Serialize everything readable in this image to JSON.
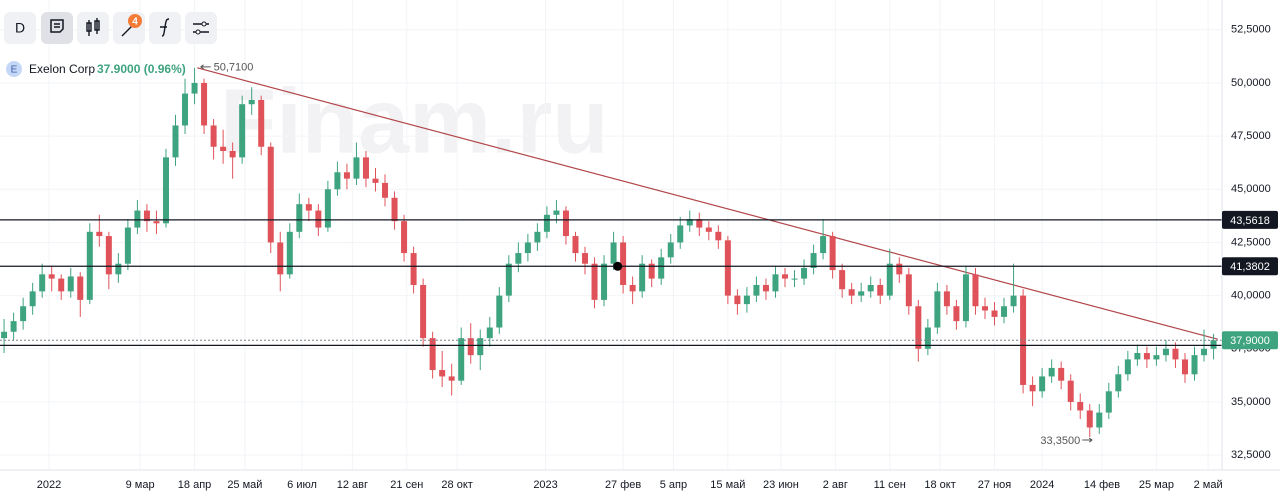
{
  "toolbar": {
    "interval": "D",
    "badge": "4"
  },
  "chart_data": {
    "type": "candlestick",
    "watermark": "Finam.ru",
    "ticker_icon": "E",
    "name": "Exelon Corp",
    "quote": "37.9000 (0.96%)",
    "up_color": "#3ea37f",
    "down_color": "#e0525a",
    "grid": true,
    "xlim": [
      "2021-11-26",
      "2024-05-10"
    ],
    "ylim": [
      31.8,
      53.9
    ],
    "yticks": [
      {
        "value": 52.5,
        "label": "52,5000"
      },
      {
        "value": 50,
        "label": "50,0000"
      },
      {
        "value": 47.5,
        "label": "47,5000"
      },
      {
        "value": 45,
        "label": "45,0000"
      },
      {
        "value": 42.5,
        "label": "42,5000"
      },
      {
        "value": 40,
        "label": "40,0000"
      },
      {
        "value": 37.5,
        "label": "37,5000"
      },
      {
        "value": 35,
        "label": "35,0000"
      },
      {
        "value": 32.5,
        "label": "32,5000"
      }
    ],
    "xticks": [
      {
        "value": "2022-01-01",
        "label": "2022"
      },
      {
        "value": "2022-03-09",
        "label": "9 мар"
      },
      {
        "value": "2022-04-18",
        "label": "18 апр"
      },
      {
        "value": "2022-05-25",
        "label": "25 май"
      },
      {
        "value": "2022-07-06",
        "label": "6 июл"
      },
      {
        "value": "2022-08-12",
        "label": "12 авг"
      },
      {
        "value": "2022-09-21",
        "label": "21 сен"
      },
      {
        "value": "2022-10-28",
        "label": "28 окт"
      },
      {
        "value": "2023-01-01",
        "label": "2023"
      },
      {
        "value": "2023-02-27",
        "label": "27 фев"
      },
      {
        "value": "2023-04-05",
        "label": "5 апр"
      },
      {
        "value": "2023-05-15",
        "label": "15 май"
      },
      {
        "value": "2023-06-23",
        "label": "23 июн"
      },
      {
        "value": "2023-08-02",
        "label": "2 авг"
      },
      {
        "value": "2023-09-11",
        "label": "11 сен"
      },
      {
        "value": "2023-10-18",
        "label": "18 окт"
      },
      {
        "value": "2023-11-27",
        "label": "27 ноя"
      },
      {
        "value": "2024-01-01",
        "label": "2024"
      },
      {
        "value": "2024-02-14",
        "label": "14 фев"
      },
      {
        "value": "2024-03-25",
        "label": "25 мар"
      },
      {
        "value": "2024-05-02",
        "label": "2 май"
      }
    ],
    "x": [
      "2021-11-29",
      "2021-12-06",
      "2021-12-13",
      "2021-12-20",
      "2021-12-27",
      "2022-01-03",
      "2022-01-10",
      "2022-01-17",
      "2022-01-24",
      "2022-01-31",
      "2022-02-07",
      "2022-02-14",
      "2022-02-21",
      "2022-02-28",
      "2022-03-07",
      "2022-03-14",
      "2022-03-21",
      "2022-03-28",
      "2022-04-04",
      "2022-04-11",
      "2022-04-18",
      "2022-04-25",
      "2022-05-02",
      "2022-05-09",
      "2022-05-16",
      "2022-05-23",
      "2022-05-30",
      "2022-06-06",
      "2022-06-13",
      "2022-06-20",
      "2022-06-27",
      "2022-07-04",
      "2022-07-11",
      "2022-07-18",
      "2022-07-25",
      "2022-08-01",
      "2022-08-08",
      "2022-08-15",
      "2022-08-22",
      "2022-08-29",
      "2022-09-05",
      "2022-09-12",
      "2022-09-19",
      "2022-09-26",
      "2022-10-03",
      "2022-10-10",
      "2022-10-17",
      "2022-10-24",
      "2022-10-31",
      "2022-11-07",
      "2022-11-14",
      "2022-11-21",
      "2022-11-28",
      "2022-12-05",
      "2022-12-12",
      "2022-12-19",
      "2022-12-26",
      "2023-01-02",
      "2023-01-09",
      "2023-01-16",
      "2023-01-23",
      "2023-01-30",
      "2023-02-06",
      "2023-02-13",
      "2023-02-20",
      "2023-02-27",
      "2023-03-06",
      "2023-03-13",
      "2023-03-20",
      "2023-03-27",
      "2023-04-03",
      "2023-04-10",
      "2023-04-17",
      "2023-04-24",
      "2023-05-01",
      "2023-05-08",
      "2023-05-15",
      "2023-05-22",
      "2023-05-29",
      "2023-06-05",
      "2023-06-12",
      "2023-06-19",
      "2023-06-26",
      "2023-07-03",
      "2023-07-10",
      "2023-07-17",
      "2023-07-24",
      "2023-07-31",
      "2023-08-07",
      "2023-08-14",
      "2023-08-21",
      "2023-08-28",
      "2023-09-04",
      "2023-09-11",
      "2023-09-18",
      "2023-09-25",
      "2023-10-02",
      "2023-10-09",
      "2023-10-16",
      "2023-10-23",
      "2023-10-30",
      "2023-11-06",
      "2023-11-13",
      "2023-11-20",
      "2023-11-27",
      "2023-12-04",
      "2023-12-11",
      "2023-12-18",
      "2023-12-25",
      "2024-01-01",
      "2024-01-08",
      "2024-01-15",
      "2024-01-22",
      "2024-01-29",
      "2024-02-05",
      "2024-02-12",
      "2024-02-19",
      "2024-02-26",
      "2024-03-04",
      "2024-03-11",
      "2024-03-18",
      "2024-03-25",
      "2024-04-01",
      "2024-04-08",
      "2024-04-15",
      "2024-04-22",
      "2024-04-29",
      "2024-05-06"
    ],
    "ohlc": [
      [
        38.0,
        38.9,
        37.3,
        38.3
      ],
      [
        38.3,
        39.2,
        37.9,
        38.8
      ],
      [
        38.8,
        39.9,
        38.4,
        39.5
      ],
      [
        39.5,
        40.6,
        39.1,
        40.2
      ],
      [
        40.2,
        41.5,
        39.9,
        41.0
      ],
      [
        41.0,
        41.4,
        40.2,
        40.8
      ],
      [
        40.8,
        41.0,
        39.8,
        40.2
      ],
      [
        40.2,
        41.3,
        39.9,
        40.9
      ],
      [
        40.9,
        41.1,
        39.0,
        39.8
      ],
      [
        39.8,
        43.4,
        39.6,
        43.0
      ],
      [
        43.0,
        43.8,
        42.3,
        42.8
      ],
      [
        42.8,
        43.0,
        40.3,
        41.0
      ],
      [
        41.0,
        42.0,
        40.6,
        41.5
      ],
      [
        41.5,
        43.6,
        41.2,
        43.2
      ],
      [
        43.2,
        44.5,
        42.9,
        44.0
      ],
      [
        44.0,
        44.3,
        43.0,
        43.5
      ],
      [
        43.5,
        44.0,
        42.9,
        43.4
      ],
      [
        43.4,
        46.9,
        43.2,
        46.5
      ],
      [
        46.5,
        48.5,
        46.1,
        48.0
      ],
      [
        48.0,
        50.2,
        47.6,
        49.5
      ],
      [
        49.5,
        50.71,
        49.0,
        50.0
      ],
      [
        50.0,
        50.2,
        47.6,
        48.0
      ],
      [
        48.0,
        48.3,
        46.4,
        47.0
      ],
      [
        47.0,
        47.8,
        46.2,
        46.8
      ],
      [
        46.8,
        47.2,
        45.5,
        46.5
      ],
      [
        46.5,
        49.4,
        46.2,
        49.0
      ],
      [
        49.0,
        49.8,
        48.5,
        49.2
      ],
      [
        49.2,
        49.4,
        46.6,
        47.0
      ],
      [
        47.0,
        47.2,
        42.0,
        42.5
      ],
      [
        42.5,
        43.0,
        40.2,
        41.0
      ],
      [
        41.0,
        43.4,
        40.8,
        43.0
      ],
      [
        43.0,
        44.8,
        42.7,
        44.3
      ],
      [
        44.3,
        44.6,
        43.5,
        44.0
      ],
      [
        44.0,
        44.3,
        42.8,
        43.2
      ],
      [
        43.2,
        45.4,
        43.0,
        45.0
      ],
      [
        45.0,
        46.3,
        44.7,
        45.8
      ],
      [
        45.8,
        46.2,
        45.0,
        45.5
      ],
      [
        45.5,
        47.2,
        45.2,
        46.5
      ],
      [
        46.5,
        46.8,
        45.1,
        45.5
      ],
      [
        45.5,
        46.0,
        44.9,
        45.3
      ],
      [
        45.3,
        45.7,
        44.2,
        44.6
      ],
      [
        44.6,
        44.9,
        43.1,
        43.5
      ],
      [
        43.5,
        43.8,
        41.6,
        42.0
      ],
      [
        42.0,
        42.3,
        40.1,
        40.5
      ],
      [
        40.5,
        40.8,
        37.6,
        38.0
      ],
      [
        38.0,
        38.3,
        36.1,
        36.5
      ],
      [
        36.5,
        37.4,
        35.7,
        36.2
      ],
      [
        36.2,
        36.8,
        35.3,
        36.0
      ],
      [
        36.0,
        38.5,
        35.8,
        38.0
      ],
      [
        38.0,
        38.7,
        36.8,
        37.2
      ],
      [
        37.2,
        38.4,
        36.5,
        38.0
      ],
      [
        38.0,
        39.0,
        37.6,
        38.5
      ],
      [
        38.5,
        40.4,
        38.2,
        40.0
      ],
      [
        40.0,
        41.9,
        39.7,
        41.5
      ],
      [
        41.5,
        42.5,
        41.1,
        42.0
      ],
      [
        42.0,
        42.9,
        41.6,
        42.5
      ],
      [
        42.5,
        43.4,
        42.1,
        43.0
      ],
      [
        43.0,
        44.2,
        42.7,
        43.8
      ],
      [
        43.8,
        44.5,
        43.4,
        44.0
      ],
      [
        44.0,
        44.2,
        42.4,
        42.8
      ],
      [
        42.8,
        43.0,
        41.6,
        42.0
      ],
      [
        42.0,
        42.3,
        41.0,
        41.5
      ],
      [
        41.5,
        41.8,
        39.4,
        39.8
      ],
      [
        39.8,
        41.9,
        39.5,
        41.5
      ],
      [
        41.5,
        43.0,
        41.2,
        42.5
      ],
      [
        42.5,
        42.8,
        40.1,
        40.5
      ],
      [
        40.5,
        40.9,
        39.6,
        40.2
      ],
      [
        40.2,
        41.9,
        39.9,
        41.5
      ],
      [
        41.5,
        41.7,
        40.4,
        40.8
      ],
      [
        40.8,
        42.2,
        40.5,
        41.8
      ],
      [
        41.8,
        42.9,
        41.5,
        42.5
      ],
      [
        42.5,
        43.7,
        42.2,
        43.3
      ],
      [
        43.3,
        44.0,
        43.0,
        43.6
      ],
      [
        43.6,
        43.9,
        42.8,
        43.2
      ],
      [
        43.2,
        43.5,
        42.6,
        43.0
      ],
      [
        43.0,
        43.3,
        42.2,
        42.6
      ],
      [
        42.6,
        42.8,
        39.6,
        40.0
      ],
      [
        40.0,
        40.3,
        39.1,
        39.6
      ],
      [
        39.6,
        40.4,
        39.2,
        40.0
      ],
      [
        40.0,
        40.9,
        39.7,
        40.5
      ],
      [
        40.5,
        40.8,
        39.8,
        40.2
      ],
      [
        40.2,
        41.4,
        39.9,
        41.0
      ],
      [
        41.0,
        41.3,
        40.4,
        40.8
      ],
      [
        40.8,
        41.2,
        40.4,
        40.8
      ],
      [
        40.8,
        41.7,
        40.5,
        41.3
      ],
      [
        41.3,
        42.4,
        41.0,
        42.0
      ],
      [
        42.0,
        43.6,
        41.7,
        42.8
      ],
      [
        42.8,
        43.0,
        40.8,
        41.2
      ],
      [
        41.2,
        41.5,
        39.9,
        40.3
      ],
      [
        40.3,
        40.6,
        39.6,
        40.0
      ],
      [
        40.0,
        40.6,
        39.7,
        40.2
      ],
      [
        40.2,
        40.9,
        39.9,
        40.5
      ],
      [
        40.5,
        40.8,
        39.6,
        40.0
      ],
      [
        40.0,
        42.2,
        39.8,
        41.5
      ],
      [
        41.5,
        41.8,
        40.6,
        41.0
      ],
      [
        41.0,
        41.3,
        39.1,
        39.5
      ],
      [
        39.5,
        39.8,
        36.9,
        37.5
      ],
      [
        37.5,
        38.9,
        37.2,
        38.5
      ],
      [
        38.5,
        40.6,
        38.2,
        40.2
      ],
      [
        40.2,
        40.5,
        39.1,
        39.5
      ],
      [
        39.5,
        39.8,
        38.4,
        38.8
      ],
      [
        38.8,
        41.4,
        38.5,
        41.0
      ],
      [
        41.0,
        41.3,
        39.1,
        39.5
      ],
      [
        39.5,
        39.9,
        38.9,
        39.3
      ],
      [
        39.3,
        39.7,
        38.6,
        39.0
      ],
      [
        39.0,
        39.9,
        38.7,
        39.5
      ],
      [
        39.5,
        41.5,
        39.2,
        40.0
      ],
      [
        40.0,
        40.3,
        35.4,
        35.8
      ],
      [
        35.8,
        36.2,
        34.8,
        35.5
      ],
      [
        35.5,
        36.6,
        35.2,
        36.2
      ],
      [
        36.2,
        37.0,
        35.9,
        36.6
      ],
      [
        36.6,
        36.9,
        35.6,
        36.0
      ],
      [
        36.0,
        36.3,
        34.6,
        35.0
      ],
      [
        35.0,
        35.4,
        34.2,
        34.6
      ],
      [
        34.6,
        34.9,
        33.35,
        33.8
      ],
      [
        33.8,
        34.9,
        33.5,
        34.5
      ],
      [
        34.5,
        35.9,
        34.2,
        35.5
      ],
      [
        35.5,
        36.7,
        35.2,
        36.3
      ],
      [
        36.3,
        37.4,
        36.0,
        37.0
      ],
      [
        37.0,
        37.7,
        36.7,
        37.3
      ],
      [
        37.3,
        37.6,
        36.6,
        37.0
      ],
      [
        37.0,
        37.6,
        36.7,
        37.2
      ],
      [
        37.2,
        37.9,
        36.9,
        37.5
      ],
      [
        37.5,
        37.8,
        36.6,
        37.0
      ],
      [
        37.0,
        37.3,
        35.9,
        36.3
      ],
      [
        36.3,
        37.6,
        36.0,
        37.2
      ],
      [
        37.2,
        38.4,
        36.9,
        37.5
      ],
      [
        37.5,
        38.2,
        37.0,
        37.9
      ]
    ],
    "levels": [
      {
        "value": 43.5618,
        "label": "43,5618"
      },
      {
        "value": 41.3802,
        "label": "41,3802"
      },
      {
        "value": 37.66
      }
    ],
    "level_color": "#131722",
    "last_price": {
      "value": 37.9,
      "label": "37,9000",
      "color": "#3ea37f"
    },
    "trendline": {
      "x": [
        "2022-04-20",
        "2024-05-09"
      ],
      "y": [
        50.71,
        37.95
      ],
      "color": "#b2474b"
    },
    "marker": {
      "x": "2023-02-23",
      "y": 41.3802
    },
    "annotations": [
      {
        "x": "2022-04-21",
        "value": 50.71,
        "label": "50,7100",
        "side": "right"
      },
      {
        "x": "2024-02-09",
        "value": 33.35,
        "label": "33,3500",
        "side": "left"
      }
    ]
  }
}
